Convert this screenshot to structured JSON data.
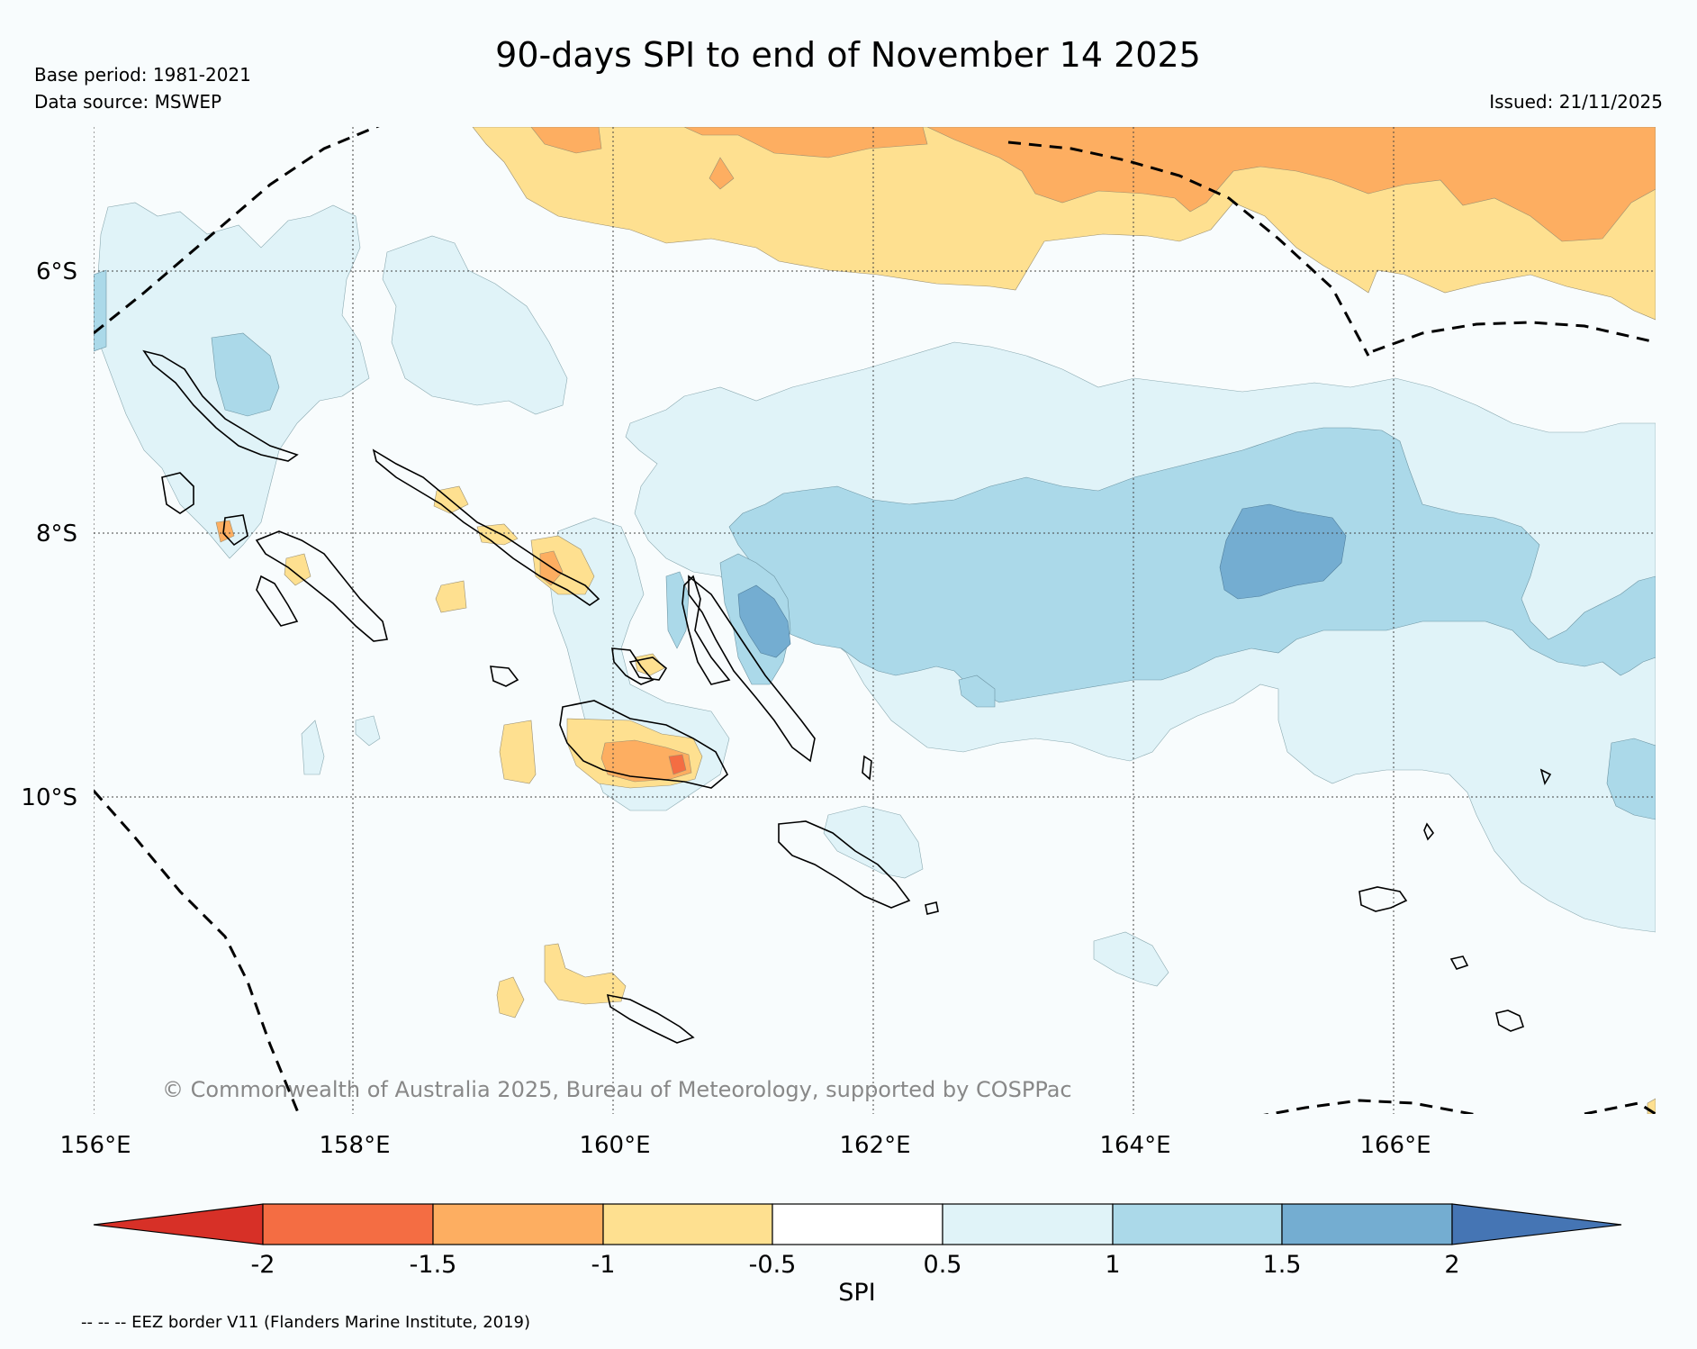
{
  "figure": {
    "title": "90-days SPI to end of November 14 2025",
    "base_period": "Base period: 1981-2021",
    "data_source": "Data source: MSWEP",
    "issued": "Issued: 21/11/2025",
    "copyright": "© Commonwealth of Australia 2025, Bureau of Meteorology, supported by COSPPac",
    "eez_note": "-- -- -- EEZ border V11 (Flanders Marine Institute, 2019)"
  },
  "axes": {
    "lon_labels": [
      "156°E",
      "158°E",
      "160°E",
      "162°E",
      "164°E",
      "166°E"
    ],
    "lat_labels": [
      "6°S",
      "8°S",
      "10°S"
    ]
  },
  "colorbar": {
    "label": "SPI",
    "ticks": [
      "-2",
      "-1.5",
      "-1",
      "-0.5",
      "0.5",
      "1",
      "1.5",
      "2"
    ],
    "bins": [
      {
        "range": "< -2",
        "color": "#d73027"
      },
      {
        "range": "-2 to -1.5",
        "color": "#f46d43"
      },
      {
        "range": "-1.5 to -1",
        "color": "#fdae61"
      },
      {
        "range": "-1 to -0.5",
        "color": "#fee090"
      },
      {
        "range": "-0.5 to 0.5",
        "color": "#ffffff"
      },
      {
        "range": "0.5 to 1",
        "color": "#e0f3f8"
      },
      {
        "range": "1 to 1.5",
        "color": "#abd9e9"
      },
      {
        "range": "1.5 to 2",
        "color": "#74add1"
      },
      {
        "range": "> 2",
        "color": "#4575b4"
      }
    ]
  },
  "colors": {
    "background": "#f8fcfd",
    "dry_strong": "#fdae61",
    "dry_moderate": "#fee090",
    "wet_light": "#e0f3f8",
    "wet_moderate": "#abd9e9",
    "wet_strong": "#74add1",
    "dry_extreme_patch": "#f46d43"
  }
}
